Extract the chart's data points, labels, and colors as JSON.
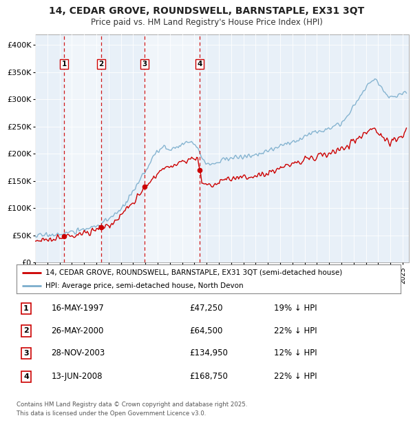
{
  "title_line1": "14, CEDAR GROVE, ROUNDSWELL, BARNSTAPLE, EX31 3QT",
  "title_line2": "Price paid vs. HM Land Registry's House Price Index (HPI)",
  "legend_line1": "14, CEDAR GROVE, ROUNDSWELL, BARNSTAPLE, EX31 3QT (semi-detached house)",
  "legend_line2": "HPI: Average price, semi-detached house, North Devon",
  "footer_line1": "Contains HM Land Registry data © Crown copyright and database right 2025.",
  "footer_line2": "This data is licensed under the Open Government Licence v3.0.",
  "red_color": "#cc0000",
  "blue_color": "#7aadcc",
  "background_plot": "#e8f0f8",
  "vline_color": "#cc0000",
  "purchases": [
    {
      "num": 1,
      "date_label": "16-MAY-1997",
      "date_dec": 1997.37,
      "price": 47250,
      "pct": "19%"
    },
    {
      "num": 2,
      "date_label": "26-MAY-2000",
      "date_dec": 2000.4,
      "price": 64500,
      "pct": "22%"
    },
    {
      "num": 3,
      "date_label": "28-NOV-2003",
      "date_dec": 2003.91,
      "price": 134950,
      "pct": "12%"
    },
    {
      "num": 4,
      "date_label": "13-JUN-2008",
      "date_dec": 2008.45,
      "price": 168750,
      "pct": "22%"
    }
  ],
  "xlim": [
    1995.0,
    2025.5
  ],
  "ylim": [
    0,
    420000
  ],
  "yticks": [
    0,
    50000,
    100000,
    150000,
    200000,
    250000,
    300000,
    350000,
    400000
  ],
  "ytick_labels": [
    "£0",
    "£50K",
    "£100K",
    "£150K",
    "£200K",
    "£250K",
    "£300K",
    "£350K",
    "£400K"
  ],
  "hpi_waypoints_x": [
    1995.0,
    1995.5,
    1996.0,
    1996.5,
    1997.0,
    1997.5,
    1998.0,
    1998.5,
    1999.0,
    1999.5,
    2000.0,
    2000.5,
    2001.0,
    2001.5,
    2002.0,
    2002.5,
    2003.0,
    2003.5,
    2004.0,
    2004.25,
    2004.5,
    2004.75,
    2005.0,
    2005.25,
    2005.5,
    2005.75,
    2006.0,
    2006.25,
    2006.5,
    2006.75,
    2007.0,
    2007.25,
    2007.5,
    2007.75,
    2008.0,
    2008.25,
    2008.5,
    2008.75,
    2009.0,
    2009.25,
    2009.5,
    2009.75,
    2010.0,
    2010.25,
    2010.5,
    2010.75,
    2011.0,
    2011.5,
    2012.0,
    2012.5,
    2013.0,
    2013.5,
    2014.0,
    2014.5,
    2015.0,
    2015.5,
    2016.0,
    2016.5,
    2017.0,
    2017.5,
    2018.0,
    2018.5,
    2019.0,
    2019.5,
    2020.0,
    2020.25,
    2020.5,
    2020.75,
    2021.0,
    2021.25,
    2021.5,
    2021.75,
    2022.0,
    2022.25,
    2022.5,
    2022.75,
    2023.0,
    2023.25,
    2023.5,
    2023.75,
    2024.0,
    2024.25,
    2024.5,
    2024.75,
    2025.0,
    2025.3
  ],
  "hpi_waypoints_y": [
    49000,
    49500,
    50500,
    51500,
    52500,
    54000,
    56000,
    58500,
    61000,
    64000,
    68000,
    73000,
    79000,
    87000,
    98000,
    113000,
    130000,
    148000,
    168000,
    180000,
    190000,
    198000,
    205000,
    208000,
    212000,
    210000,
    208000,
    210000,
    213000,
    215000,
    218000,
    220000,
    222000,
    220000,
    216000,
    210000,
    198000,
    188000,
    182000,
    180000,
    181000,
    183000,
    187000,
    190000,
    192000,
    191000,
    192000,
    193000,
    194000,
    196000,
    198000,
    201000,
    205000,
    210000,
    214000,
    218000,
    222000,
    227000,
    232000,
    237000,
    241000,
    245000,
    249000,
    253000,
    257000,
    262000,
    270000,
    278000,
    286000,
    296000,
    306000,
    315000,
    322000,
    328000,
    334000,
    338000,
    332000,
    322000,
    312000,
    307000,
    305000,
    306000,
    308000,
    310000,
    312000,
    315000
  ],
  "prop_waypoints_x": [
    1995.0,
    1996.0,
    1997.0,
    1997.37,
    1997.5,
    1998.0,
    1998.5,
    1999.0,
    1999.5,
    2000.0,
    2000.4,
    2000.5,
    2001.0,
    2001.5,
    2002.0,
    2002.5,
    2003.0,
    2003.5,
    2003.91,
    2004.0,
    2004.5,
    2005.0,
    2005.5,
    2006.0,
    2006.5,
    2007.0,
    2007.5,
    2008.0,
    2008.25,
    2008.45,
    2008.6,
    2008.75,
    2009.0,
    2009.5,
    2010.0,
    2010.5,
    2011.0,
    2011.5,
    2012.0,
    2012.5,
    2013.0,
    2013.5,
    2014.0,
    2014.5,
    2015.0,
    2015.5,
    2016.0,
    2016.5,
    2017.0,
    2017.5,
    2018.0,
    2018.5,
    2019.0,
    2019.5,
    2020.0,
    2020.5,
    2021.0,
    2021.5,
    2022.0,
    2022.5,
    2023.0,
    2023.5,
    2024.0,
    2024.5,
    2025.0,
    2025.3
  ],
  "prop_waypoints_y": [
    41000,
    43000,
    45000,
    47250,
    48000,
    50000,
    52000,
    54000,
    57000,
    60000,
    64500,
    65000,
    70000,
    76000,
    86000,
    99000,
    114000,
    128000,
    134950,
    138000,
    152000,
    165000,
    173000,
    178000,
    182000,
    186000,
    190000,
    193000,
    195000,
    168750,
    152000,
    147000,
    143000,
    141000,
    148000,
    152000,
    153000,
    154000,
    155000,
    157000,
    159000,
    162000,
    165000,
    169000,
    173000,
    177000,
    181000,
    185000,
    189000,
    193000,
    196000,
    199000,
    202000,
    205000,
    208000,
    214000,
    222000,
    232000,
    240000,
    248000,
    237000,
    228000,
    222000,
    228000,
    235000,
    248000
  ]
}
